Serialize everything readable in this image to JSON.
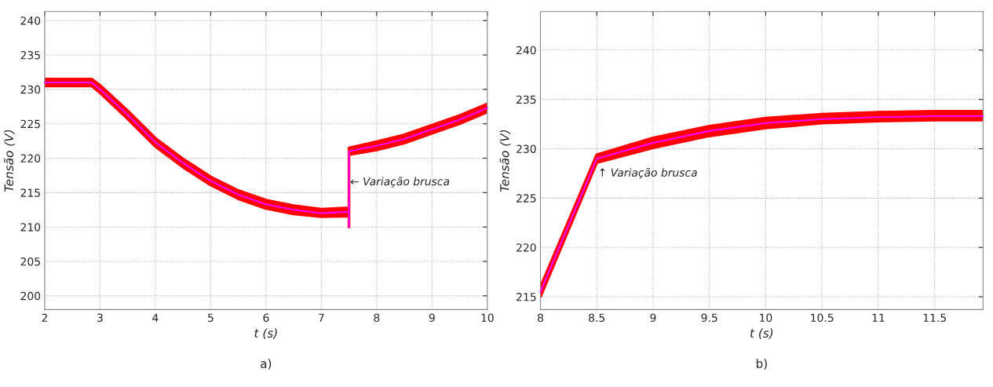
{
  "chart_data": [
    {
      "type": "line",
      "xlabel": "t (s)",
      "ylabel": "Tensão (V)",
      "xlim": [
        2,
        10
      ],
      "ylim": [
        198,
        241.3
      ],
      "xticks": [
        2,
        3,
        4,
        5,
        6,
        7,
        8,
        9,
        10
      ],
      "yticks": [
        200,
        205,
        210,
        215,
        220,
        225,
        230,
        235,
        240
      ],
      "grid": true,
      "line_style": "solid",
      "series": [
        {
          "color": "#ff00ff",
          "x": [
            2,
            2.85,
            3,
            3.5,
            4,
            4.5,
            5,
            5.5,
            6,
            6.5,
            7,
            7.5,
            7.5,
            7.5,
            8,
            8.5,
            9,
            9.5,
            10
          ],
          "values": [
            231,
            231,
            230,
            226.3,
            222.3,
            219.3,
            216.7,
            214.7,
            213.3,
            212.5,
            212.0,
            212.2,
            210,
            221,
            221.8,
            222.8,
            224.2,
            225.6,
            227.3
          ],
          "lower": [
            230.5,
            230.5,
            229.5,
            225.7,
            221.7,
            218.7,
            216.1,
            214.1,
            212.7,
            211.9,
            211.5,
            211.6,
            210,
            220.5,
            221.2,
            222.2,
            223.6,
            225.0,
            226.7
          ],
          "upper": [
            231.5,
            231.5,
            230.6,
            226.9,
            222.9,
            219.9,
            217.3,
            215.3,
            213.9,
            213.1,
            212.6,
            212.8,
            210,
            221.5,
            222.4,
            223.4,
            224.8,
            226.2,
            227.9
          ]
        }
      ],
      "annotations": [
        {
          "text": "← Variação brusca",
          "x": 7.5,
          "y": 216.5
        },
        "a)"
      ]
    },
    {
      "type": "line",
      "xlabel": "t (s)",
      "ylabel": "Tensão (V)",
      "xlim": [
        8,
        11.93
      ],
      "ylim": [
        213.7,
        243.9
      ],
      "xticks": [
        8,
        8.5,
        9,
        9.5,
        10,
        10.5,
        11,
        11.5
      ],
      "yticks": [
        215,
        220,
        225,
        230,
        235,
        240
      ],
      "grid": true,
      "line_style": "solid",
      "series": [
        {
          "color": "#ff00ff",
          "x": [
            8,
            8.5,
            9,
            9.5,
            10,
            10.5,
            11,
            11.5,
            11.93
          ],
          "values": [
            215.5,
            229,
            230.6,
            231.8,
            232.6,
            233.0,
            233.2,
            233.3,
            233.3
          ],
          "lower": [
            215.0,
            228.6,
            230.1,
            231.3,
            232.1,
            232.6,
            232.8,
            232.9,
            232.9
          ],
          "upper": [
            216.0,
            229.4,
            231.1,
            232.3,
            233.1,
            233.5,
            233.7,
            233.8,
            233.8
          ]
        }
      ],
      "annotations": [
        {
          "text": "↑ Variação brusca",
          "x": 8.5,
          "y": 227.5
        },
        "b)"
      ]
    }
  ]
}
